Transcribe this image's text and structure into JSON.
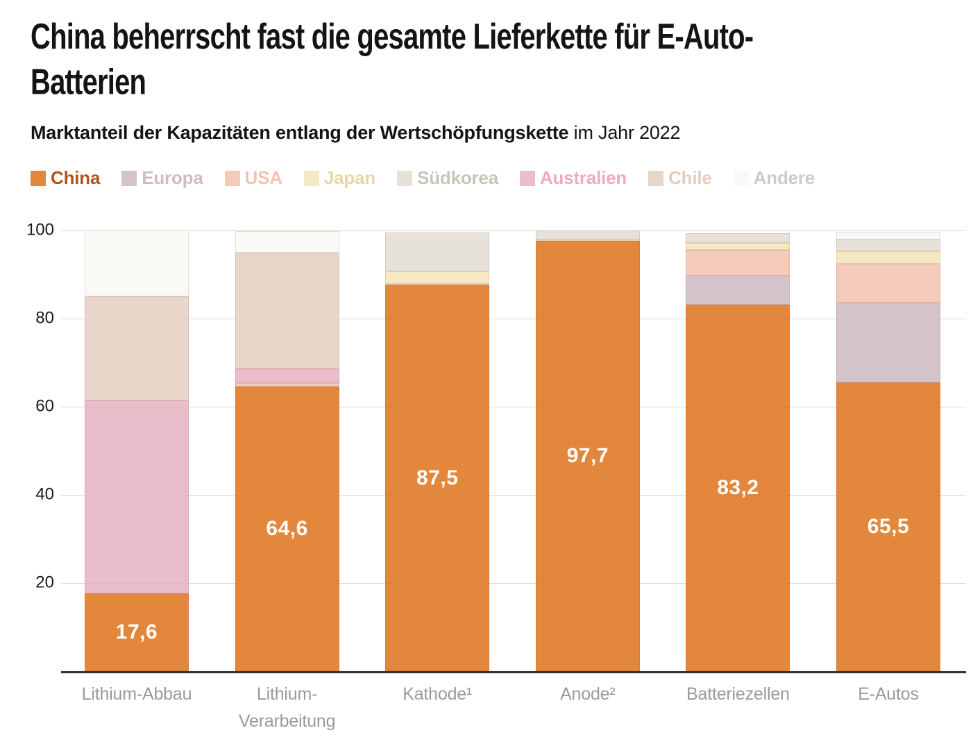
{
  "title": "China beherrscht fast die gesamte Lieferkette für E-Auto-\nBatterien",
  "subtitle": {
    "bold": "Marktanteil der Kapazitäten entlang der Wertschöpfungskette",
    "rest": " im Jahr 2022"
  },
  "styles": {
    "grid_color": "#e4e4e4",
    "axis_line_color": "#2f2f2f",
    "x_label_color": "#9a9a9a",
    "y_tick_color": "#1a1a1a",
    "value_label_color": "#ffffff"
  },
  "chart_data": {
    "type": "bar",
    "stacked": true,
    "grid": true,
    "legend_position": "top",
    "ylim": [
      0,
      100
    ],
    "yticks": [
      20,
      40,
      60,
      80,
      100
    ],
    "categories": [
      "Lithium-Abbau",
      "Lithium-Verarbeitung",
      "Kathode¹",
      "Anode²",
      "Batteriezellen",
      "E-Autos"
    ],
    "category_lines": [
      [
        "Lithium-Abbau"
      ],
      [
        "Lithium-",
        "Verarbeitung"
      ],
      [
        "Kathode¹"
      ],
      [
        "Anode²"
      ],
      [
        "Batteriezellen"
      ],
      [
        "E-Autos"
      ]
    ],
    "series": [
      {
        "name": "China",
        "color": "#e2873c",
        "legend_text_color": "#b0551e",
        "values": [
          17.6,
          64.6,
          87.5,
          97.7,
          83.2,
          65.5
        ],
        "labels": [
          "17,6",
          "64,6",
          "87,5",
          "97,7",
          "83,2",
          "65,5"
        ]
      },
      {
        "name": "Europa",
        "color": "#d5c3cb",
        "legend_text_color": "#d0bac6",
        "values": [
          0,
          0,
          0,
          0,
          6.6,
          18.2
        ],
        "labels": null
      },
      {
        "name": "USA",
        "color": "#f4cbba",
        "legend_text_color": "#f4c3af",
        "values": [
          0,
          0.8,
          0.4,
          0,
          5.8,
          8.8
        ],
        "labels": null
      },
      {
        "name": "Japan",
        "color": "#f5e9c3",
        "legend_text_color": "#e8d7a4",
        "values": [
          0,
          0,
          2.8,
          0.3,
          1.5,
          2.8
        ],
        "labels": null
      },
      {
        "name": "Südkorea",
        "color": "#e6e2da",
        "legend_text_color": "#c8c4ba",
        "values": [
          0,
          0,
          8.8,
          2.0,
          2.3,
          2.6
        ],
        "labels": null
      },
      {
        "name": "Australien",
        "color": "#eabdcb",
        "legend_text_color": "#efa9c0",
        "values": [
          43.8,
          3.3,
          0,
          0,
          0,
          0
        ],
        "labels": null
      },
      {
        "name": "Chile",
        "color": "#e9d6cb",
        "legend_text_color": "#e3ccc0",
        "values": [
          23.6,
          26.2,
          0,
          0,
          0,
          0
        ],
        "labels": null
      },
      {
        "name": "Andere",
        "color": "#fbf9f5",
        "legend_text_color": "#cbcbcb",
        "values": [
          15.0,
          5.0,
          0,
          0,
          0,
          1.8
        ],
        "labels": null
      }
    ]
  }
}
